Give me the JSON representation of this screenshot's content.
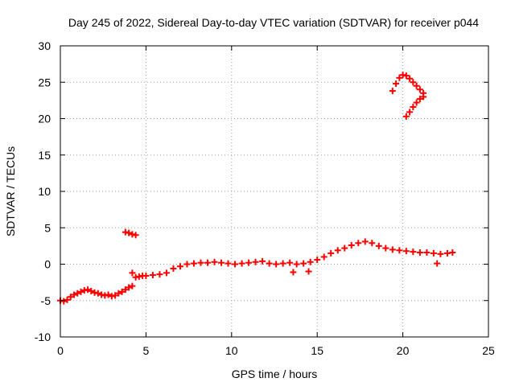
{
  "chart_data": {
    "type": "scatter",
    "title": "Day 245 of 2022, Sidereal Day-to-day VTEC variation (SDTVAR) for receiver p044",
    "xlabel": "GPS time / hours",
    "ylabel": "SDTVAR / TECUs",
    "xlim": [
      0,
      25
    ],
    "ylim": [
      -10,
      30
    ],
    "x_ticks": [
      0,
      5,
      10,
      15,
      20,
      25
    ],
    "y_ticks": [
      -10,
      -5,
      0,
      5,
      10,
      15,
      20,
      25,
      30
    ],
    "grid": true,
    "marker": "plus",
    "color": "#ff0000",
    "series": [
      {
        "x": [
          0.0,
          0.2,
          0.4,
          0.6,
          0.8,
          1.0,
          1.2,
          1.4,
          1.6,
          1.8,
          2.0,
          2.2,
          2.4,
          2.6,
          2.8,
          3.0,
          3.2,
          3.4,
          3.6,
          3.8,
          4.0,
          4.2,
          4.4,
          4.6,
          4.8,
          5.0,
          5.4,
          5.8,
          6.2,
          6.6,
          7.0,
          7.4,
          7.8,
          8.2,
          8.6,
          9.0,
          9.4,
          9.8,
          10.2,
          10.6,
          11.0,
          11.4,
          11.8,
          12.2,
          12.6,
          13.0,
          13.4,
          13.8,
          14.2,
          14.6,
          15.0,
          15.4,
          15.8,
          16.2,
          16.6,
          17.0,
          17.4,
          17.8,
          18.2,
          18.6,
          19.0,
          19.4,
          19.8,
          20.2,
          20.6,
          21.0,
          21.4,
          21.8,
          22.2,
          22.6,
          22.9,
          3.8,
          4.0,
          4.2,
          4.4,
          19.4,
          19.6,
          19.8,
          20.0,
          20.2,
          20.4,
          20.6,
          20.8,
          21.0,
          21.2,
          20.2,
          20.4,
          20.6,
          20.8,
          21.0,
          21.2,
          22.0,
          4.2,
          13.6,
          14.5
        ],
        "values": [
          -5.0,
          -5.1,
          -4.9,
          -4.5,
          -4.2,
          -4.0,
          -3.8,
          -3.6,
          -3.5,
          -3.7,
          -3.9,
          -4.0,
          -4.2,
          -4.3,
          -4.2,
          -4.4,
          -4.3,
          -4.0,
          -3.8,
          -3.5,
          -3.2,
          -3.0,
          -1.8,
          -1.7,
          -1.6,
          -1.6,
          -1.5,
          -1.4,
          -1.2,
          -0.6,
          -0.3,
          0.0,
          0.1,
          0.2,
          0.2,
          0.3,
          0.2,
          0.1,
          0.0,
          0.1,
          0.2,
          0.3,
          0.4,
          0.1,
          0.0,
          0.1,
          0.2,
          0.0,
          0.1,
          0.3,
          0.6,
          1.0,
          1.5,
          1.9,
          2.2,
          2.6,
          2.9,
          3.1,
          2.9,
          2.5,
          2.2,
          2.0,
          1.9,
          1.8,
          1.7,
          1.6,
          1.6,
          1.5,
          1.4,
          1.5,
          1.6,
          4.4,
          4.3,
          4.1,
          4.0,
          23.8,
          24.8,
          25.6,
          26.0,
          25.9,
          25.5,
          25.0,
          24.5,
          24.0,
          23.5,
          20.3,
          20.9,
          21.6,
          22.2,
          22.7,
          23.0,
          0.1,
          -1.2,
          -1.1,
          -1.0
        ]
      }
    ]
  }
}
